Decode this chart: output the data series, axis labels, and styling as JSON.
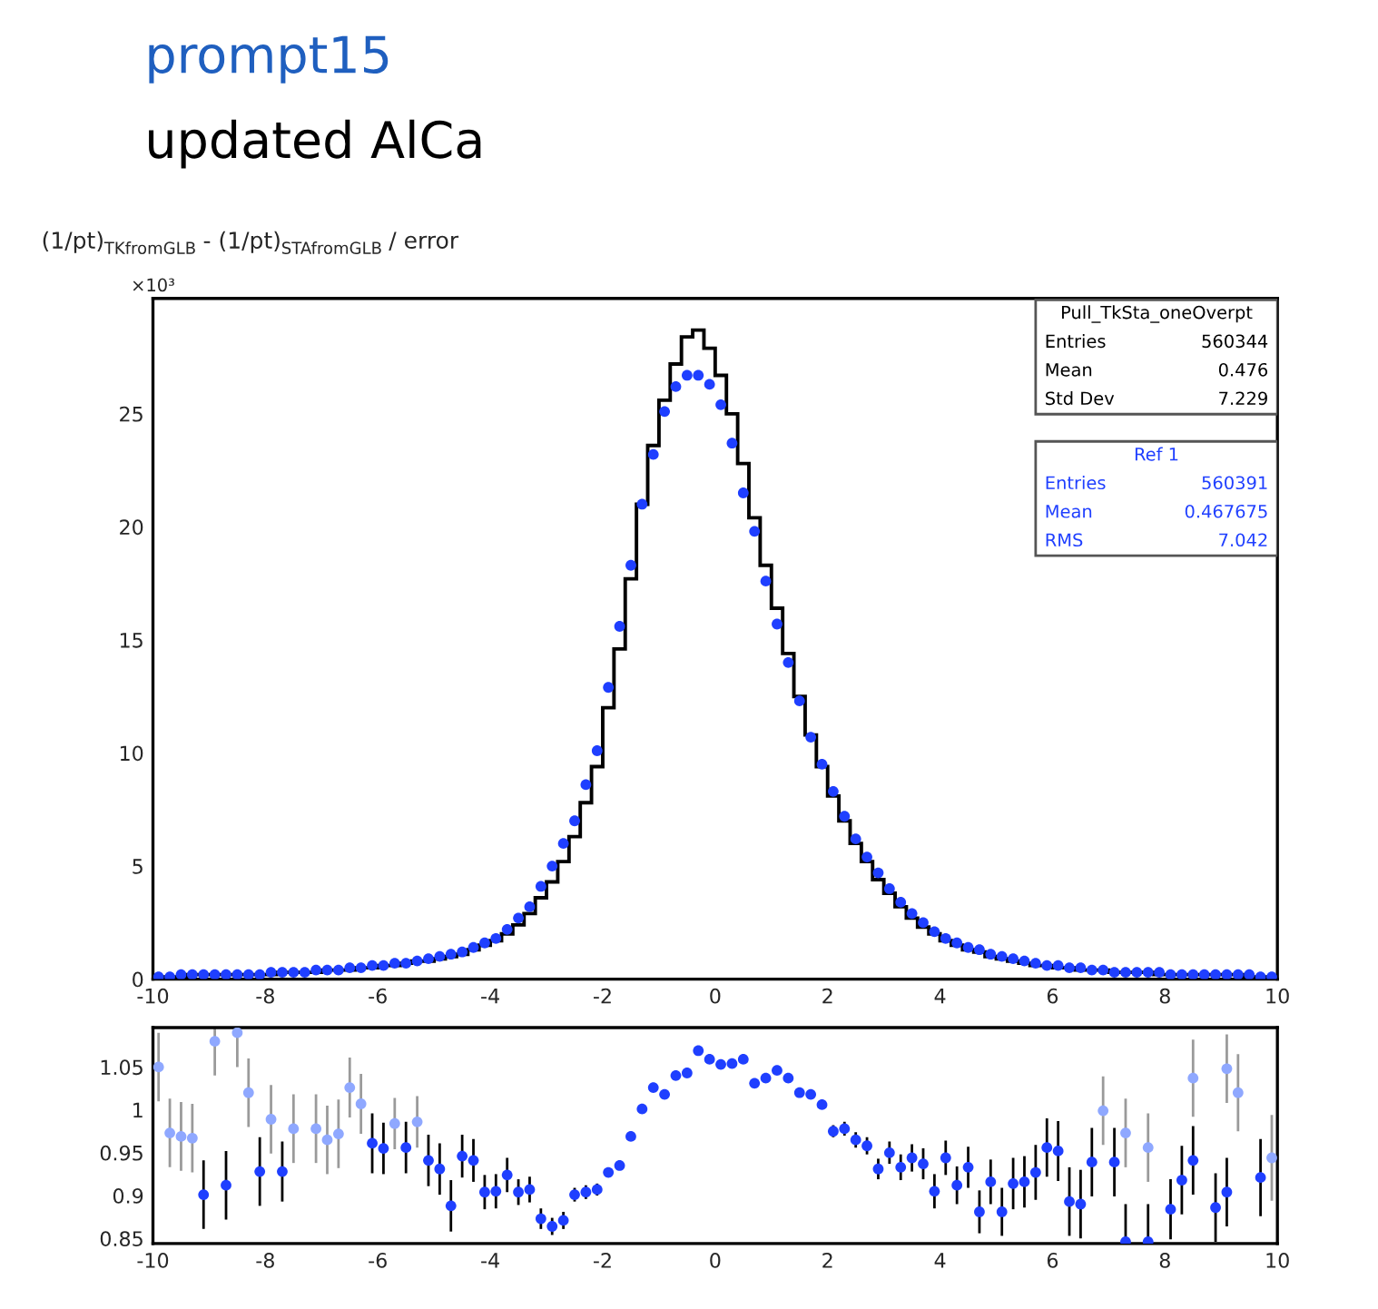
{
  "chart_data": [
    {
      "type": "histogram",
      "title": "prompt15",
      "subtitle": "updated AlCa",
      "annotations": [
        "(1/pt)$_{TKfromGLB}$ - (1/pt)$_{STAfromGLB}$ / error",
        "×10³",
        "Pull_TkSta_oneOverpt",
        "Entries 560344",
        "Mean 0.476",
        "Std Dev 7.229",
        "Ref 1",
        "Entries 560391",
        "Mean 0.467675",
        "RMS 7.042"
      ],
      "bins": [
        -10,
        -9.8,
        -9.6,
        -9.4,
        -9.2,
        -9,
        -8.8,
        -8.6,
        -8.4,
        -8.2,
        -8,
        -7.8,
        -7.6,
        -7.4,
        -7.2,
        -7,
        -6.8,
        -6.6,
        -6.4,
        -6.2,
        -6,
        -5.8,
        -5.6,
        -5.4,
        -5.2,
        -5,
        -4.8,
        -4.6,
        -4.4,
        -4.2,
        -4,
        -3.8,
        -3.6,
        -3.4,
        -3.2,
        -3,
        -2.8,
        -2.6,
        -2.4,
        -2.2,
        -2,
        -1.8,
        -1.6,
        -1.4,
        -1.2,
        -1,
        -0.8,
        -0.6,
        -0.4,
        -0.2,
        0,
        0.2,
        0.4,
        0.6,
        0.8,
        1,
        1.2,
        1.4,
        1.6,
        1.8,
        2,
        2.2,
        2.4,
        2.6,
        2.8,
        3,
        3.2,
        3.4,
        3.6,
        3.8,
        4,
        4.2,
        4.4,
        4.6,
        4.8,
        5,
        5.2,
        5.4,
        5.6,
        5.8,
        6,
        6.2,
        6.4,
        6.6,
        6.8,
        7,
        7.2,
        7.4,
        7.6,
        7.8,
        8,
        8.2,
        8.4,
        8.6,
        8.8,
        9,
        9.2,
        9.4,
        9.6,
        9.8,
        10
      ],
      "series": [
        {
          "type": "histogram",
          "color": "#000000",
          "values": [
            0.1,
            0.1,
            0.1,
            0.2,
            0.2,
            0.2,
            0.2,
            0.2,
            0.2,
            0.2,
            0.2,
            0.3,
            0.3,
            0.3,
            0.3,
            0.4,
            0.4,
            0.4,
            0.5,
            0.5,
            0.6,
            0.6,
            0.7,
            0.8,
            0.8,
            0.9,
            1.0,
            1.1,
            1.3,
            1.5,
            1.7,
            2.0,
            2.4,
            2.9,
            3.6,
            4.3,
            5.2,
            6.3,
            7.8,
            9.4,
            12.0,
            14.6,
            17.7,
            21.0,
            23.6,
            25.6,
            27.2,
            28.4,
            28.7,
            27.9,
            26.7,
            25.0,
            22.8,
            20.4,
            18.3,
            16.4,
            14.4,
            12.5,
            10.8,
            9.4,
            8.1,
            7.0,
            6.0,
            5.2,
            4.4,
            3.8,
            3.2,
            2.7,
            2.3,
            2.0,
            1.7,
            1.5,
            1.3,
            1.2,
            1.0,
            0.9,
            0.8,
            0.7,
            0.6,
            0.6,
            0.5,
            0.5,
            0.4,
            0.4,
            0.4,
            0.3,
            0.3,
            0.3,
            0.3,
            0.2,
            0.2,
            0.2,
            0.2,
            0.2,
            0.2,
            0.2,
            0.2,
            0.1,
            0.1,
            0.1
          ]
        },
        {
          "type": "scatter",
          "color": "#1f3fff",
          "marker": "circle",
          "x": [
            -9.9,
            -9.7,
            -9.5,
            -9.3,
            -9.1,
            -8.9,
            -8.7,
            -8.5,
            -8.3,
            -8.1,
            -7.9,
            -7.7,
            -7.5,
            -7.3,
            -7.1,
            -6.9,
            -6.7,
            -6.5,
            -6.3,
            -6.1,
            -5.9,
            -5.7,
            -5.5,
            -5.3,
            -5.1,
            -4.9,
            -4.7,
            -4.5,
            -4.3,
            -4.1,
            -3.9,
            -3.7,
            -3.5,
            -3.3,
            -3.1,
            -2.9,
            -2.7,
            -2.5,
            -2.3,
            -2.1,
            -1.9,
            -1.7,
            -1.5,
            -1.3,
            -1.1,
            -0.9,
            -0.7,
            -0.5,
            -0.3,
            -0.1,
            0.1,
            0.3,
            0.5,
            0.7,
            0.9,
            1.1,
            1.3,
            1.5,
            1.7,
            1.9,
            2.1,
            2.3,
            2.5,
            2.7,
            2.9,
            3.1,
            3.3,
            3.5,
            3.7,
            3.9,
            4.1,
            4.3,
            4.5,
            4.7,
            4.9,
            5.1,
            5.3,
            5.5,
            5.7,
            5.9,
            6.1,
            6.3,
            6.5,
            6.7,
            6.9,
            7.1,
            7.3,
            7.5,
            7.7,
            7.9,
            8.1,
            8.3,
            8.5,
            8.7,
            8.9,
            9.1,
            9.3,
            9.5,
            9.7,
            9.9
          ],
          "values": [
            0.1,
            0.1,
            0.2,
            0.2,
            0.2,
            0.2,
            0.2,
            0.2,
            0.2,
            0.2,
            0.3,
            0.3,
            0.3,
            0.3,
            0.4,
            0.4,
            0.4,
            0.5,
            0.5,
            0.6,
            0.6,
            0.7,
            0.7,
            0.8,
            0.9,
            1.0,
            1.1,
            1.2,
            1.4,
            1.6,
            1.8,
            2.2,
            2.7,
            3.2,
            4.1,
            5.0,
            6.0,
            7.0,
            8.6,
            10.1,
            12.9,
            15.6,
            18.3,
            21.0,
            23.2,
            25.1,
            26.2,
            26.7,
            26.7,
            26.3,
            25.4,
            23.7,
            21.5,
            19.8,
            17.6,
            15.7,
            14.0,
            12.3,
            10.7,
            9.5,
            8.3,
            7.2,
            6.2,
            5.4,
            4.7,
            4.0,
            3.4,
            2.9,
            2.5,
            2.1,
            1.8,
            1.6,
            1.4,
            1.3,
            1.1,
            1.0,
            0.9,
            0.8,
            0.7,
            0.6,
            0.6,
            0.5,
            0.5,
            0.4,
            0.4,
            0.3,
            0.3,
            0.3,
            0.3,
            0.3,
            0.2,
            0.2,
            0.2,
            0.2,
            0.2,
            0.2,
            0.2,
            0.2,
            0.1,
            0.1
          ]
        }
      ],
      "xlim": [
        -10,
        10
      ],
      "xticks": [
        -10,
        -8,
        -6,
        -4,
        -2,
        0,
        2,
        4,
        6,
        8,
        10
      ],
      "ylim": [
        0,
        30.1
      ],
      "yticks": [
        0,
        5,
        10,
        15,
        20,
        25
      ],
      "grid": false,
      "legend": false
    },
    {
      "type": "scatter",
      "marker": "circle",
      "series": [
        {
          "color": "#1f3fff",
          "x": [
            -9.1,
            -8.7,
            -8.1,
            -7.7,
            -6.1,
            -5.9,
            -5.5,
            -5.1,
            -4.9,
            -4.7,
            -4.5,
            -4.3,
            -4.1,
            -3.9,
            -3.7,
            -3.5,
            -3.3,
            -3.1,
            -2.9,
            -2.7,
            -2.5,
            -2.3,
            -2.1,
            -1.9,
            -1.7,
            -1.5,
            -1.3,
            -1.1,
            -0.9,
            -0.7,
            -0.5,
            -0.3,
            -0.1,
            0.1,
            0.3,
            0.5,
            0.7,
            0.9,
            1.1,
            1.3,
            1.5,
            1.7,
            1.9,
            2.1,
            2.3,
            2.5,
            2.7,
            2.9,
            3.1,
            3.3,
            3.5,
            3.7,
            3.9,
            4.1,
            4.3,
            4.5,
            4.7,
            4.9,
            5.1,
            5.3,
            5.5,
            5.7,
            5.9,
            6.1,
            6.3,
            6.5,
            6.7,
            7.1,
            7.3,
            7.7,
            8.1,
            8.3,
            8.5,
            8.9,
            9.1,
            9.7
          ],
          "values": [
            0.901,
            0.912,
            0.928,
            0.928,
            0.961,
            0.955,
            0.956,
            0.941,
            0.931,
            0.888,
            0.946,
            0.941,
            0.904,
            0.905,
            0.924,
            0.904,
            0.907,
            0.873,
            0.864,
            0.871,
            0.901,
            0.904,
            0.907,
            0.927,
            0.935,
            0.969,
            1.001,
            1.026,
            1.018,
            1.04,
            1.043,
            1.069,
            1.059,
            1.053,
            1.054,
            1.059,
            1.031,
            1.037,
            1.046,
            1.037,
            1.02,
            1.018,
            1.006,
            0.975,
            0.978,
            0.965,
            0.958,
            0.931,
            0.95,
            0.933,
            0.944,
            0.937,
            0.905,
            0.944,
            0.912,
            0.933,
            0.881,
            0.916,
            0.881,
            0.914,
            0.916,
            0.927,
            0.956,
            0.952,
            0.893,
            0.89,
            0.939,
            0.939,
            0.846,
            0.846,
            0.884,
            0.918,
            0.941,
            0.886,
            0.904,
            0.921
          ],
          "errors": [
            0.04,
            0.04,
            0.04,
            0.035,
            0.035,
            0.03,
            0.03,
            0.03,
            0.03,
            0.03,
            0.025,
            0.025,
            0.02,
            0.02,
            0.02,
            0.015,
            0.015,
            0.012,
            0.01,
            0.01,
            0.008,
            0.008,
            0.007,
            null,
            null,
            null,
            null,
            null,
            null,
            null,
            null,
            null,
            null,
            null,
            null,
            null,
            null,
            null,
            null,
            null,
            null,
            null,
            null,
            0.007,
            0.008,
            0.009,
            0.01,
            0.012,
            0.013,
            0.015,
            0.016,
            0.018,
            0.02,
            0.02,
            0.022,
            0.024,
            0.025,
            0.026,
            0.028,
            0.03,
            0.03,
            0.032,
            0.034,
            0.035,
            0.04,
            0.04,
            0.04,
            0.04,
            [
              0.845,
              0.89
            ],
            [
              0.845,
              0.89
            ],
            0.035,
            0.04,
            0.04,
            0.04,
            0.04,
            0.045
          ]
        },
        {
          "color": "#8fa8ff",
          "x": [
            -9.9,
            -9.7,
            -9.5,
            -9.3,
            -8.9,
            -8.5,
            -8.3,
            -7.9,
            -7.5,
            -7.1,
            -6.9,
            -6.7,
            -6.5,
            -6.3,
            -5.7,
            -5.3,
            6.9,
            7.3,
            7.7,
            8.5,
            9.1,
            9.3,
            9.9
          ],
          "values": [
            1.05,
            0.973,
            0.969,
            0.967,
            1.08,
            1.09,
            1.02,
            0.989,
            0.978,
            0.978,
            0.965,
            0.972,
            1.026,
            1.007,
            0.984,
            0.986,
            0.999,
            0.973,
            0.956,
            1.037,
            1.048,
            1.02,
            0.944
          ],
          "errors": [
            0.04,
            0.04,
            0.04,
            0.04,
            [
              1.04,
              1.096
            ],
            [
              1.05,
              1.096
            ],
            0.04,
            0.04,
            0.04,
            0.04,
            0.04,
            0.04,
            0.035,
            0.035,
            0.03,
            0.03,
            0.04,
            0.04,
            0.04,
            0.045,
            0.04,
            0.045,
            0.05
          ]
        }
      ],
      "xlim": [
        -10,
        10
      ],
      "xticks": [
        -10,
        -8,
        -6,
        -4,
        -2,
        0,
        2,
        4,
        6,
        8,
        10
      ],
      "ylim": [
        0.844,
        1.096
      ],
      "yticks": [
        0.85,
        0.9,
        0.95,
        1,
        1.05
      ],
      "grid": false,
      "legend": false
    }
  ]
}
